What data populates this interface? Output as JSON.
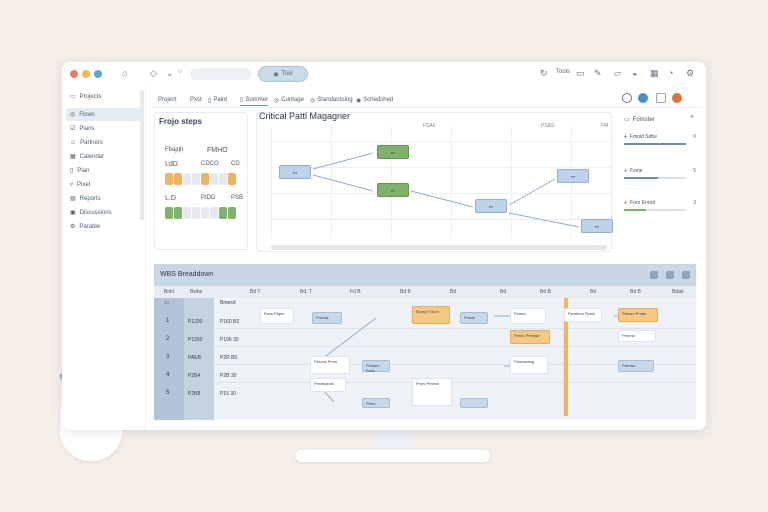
{
  "window": {
    "pill_label": "Tool",
    "right_items": [
      "Tools"
    ]
  },
  "sidebar": {
    "items": [
      {
        "label": "Projects",
        "icon": "folder-icon"
      },
      {
        "label": "Flows",
        "icon": "flow-icon",
        "active": true
      },
      {
        "label": "Plans",
        "icon": "checklist-icon"
      },
      {
        "label": "Partners",
        "icon": "users-icon"
      },
      {
        "label": "Calendar",
        "icon": "calendar-icon"
      },
      {
        "label": "Plan",
        "icon": "clipboard-icon"
      },
      {
        "label": "Pixel",
        "icon": "filter-icon"
      },
      {
        "label": "Reports",
        "icon": "report-icon"
      },
      {
        "label": "Discussions",
        "icon": "chat-icon"
      },
      {
        "label": "Parable",
        "icon": "settings-icon"
      }
    ]
  },
  "nav": {
    "tabs": [
      "Project",
      "Pxst",
      "Paint",
      "Summer",
      "Cuntage",
      "Standardsing",
      "Schedshed"
    ],
    "active_index": 3
  },
  "steps_panel": {
    "title": "Frojo steps",
    "header_left": "Fbajqh",
    "header_right": "FMHO",
    "row1_left": "LdD",
    "row1_mid": "CDCO",
    "row1_right": "CD",
    "row2_left": "L.D",
    "row2_mid": "PIDD",
    "row2_right": "PSB"
  },
  "critical_path": {
    "title": "Critical Pattl Magagner",
    "col_labels": [
      "FSAF",
      "PSAS",
      "FM"
    ]
  },
  "filter_panel": {
    "title": "Fomster",
    "rows": [
      {
        "label": "Fmoid Sdhe",
        "count": "0",
        "level": 1.0
      },
      {
        "label": "Fsme",
        "count": "5",
        "level": 0.55
      },
      {
        "label": "Foro Enrod",
        "count": "3",
        "level": 0.35
      }
    ]
  },
  "wbs": {
    "title": "WBS Breaddown",
    "col_headers": [
      "Bnld",
      "Bwbs",
      "Bmesd",
      "Bd T",
      "Bd. T",
      "Fd B",
      "Bd B",
      "Bd",
      "Bd",
      "Bd B",
      "Bd",
      "Bd B",
      "Bd B",
      "Bdab"
    ],
    "rows": [
      {
        "num": "1",
        "code": "P1200",
        "code2": "P160 B2"
      },
      {
        "num": "2",
        "code": "P1260",
        "code2": "P106 30"
      },
      {
        "num": "3",
        "code": "PAEB",
        "code2": "P2R B0"
      },
      {
        "num": "4",
        "code": "P2B4",
        "code2": "P2B 30"
      },
      {
        "num": "5",
        "code": "P2B8",
        "code2": "P15 30"
      }
    ],
    "tasks": [
      "Paxs Papm",
      "Pmrsal",
      "Bompt Tdom",
      "Pmsie",
      "Pomrs",
      "Psmfmm Ppnis",
      "Prtosm Pmas",
      "Prmrs Perrase",
      "Pmrmp",
      "Perons Pmrs",
      "Pmdsm Fecs",
      "Pdmcaning",
      "Parmsn",
      "Pmmtpecis",
      "Pmrs Pmesh",
      "Pmrs"
    ]
  }
}
